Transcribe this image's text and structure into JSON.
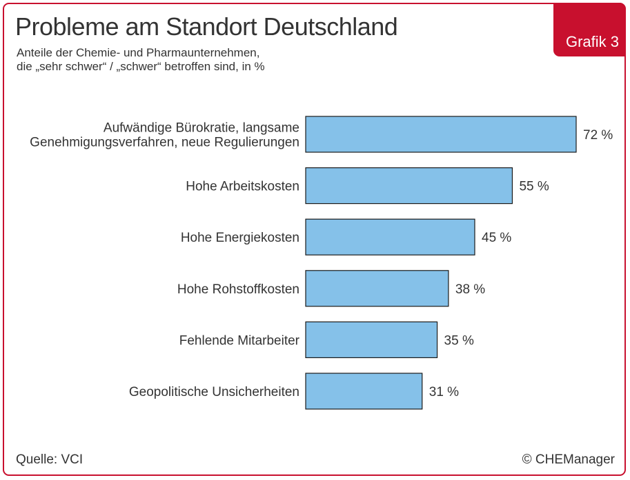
{
  "badge": "Grafik 3",
  "chart_data": {
    "type": "bar",
    "orientation": "horizontal",
    "title": "Probleme am Standort Deutschland",
    "subtitle_lines": [
      "Anteile der Chemie- und Pharmaunternehmen,",
      "die „sehr schwer“ / „schwer“ betroffen sind, in %"
    ],
    "categories": [
      [
        "Aufwändige Bürokratie, langsame",
        "Genehmigungsverfahren, neue Regulierungen"
      ],
      [
        "Hohe Arbeitskosten"
      ],
      [
        "Hohe Energiekosten"
      ],
      [
        "Hohe Rohstoffkosten"
      ],
      [
        "Fehlende Mitarbeiter"
      ],
      [
        "Geopolitische Unsicherheiten"
      ]
    ],
    "values": [
      72,
      55,
      45,
      38,
      35,
      31
    ],
    "value_labels": [
      "72 %",
      "55 %",
      "45 %",
      "38 %",
      "35 %",
      "31 %"
    ],
    "bar_color": "#85c1e9",
    "bar_border": "#1a1a1a",
    "xlim": [
      0,
      72
    ]
  },
  "footer": {
    "source": "Quelle: VCI",
    "copyright": "© CHEManager"
  },
  "colors": {
    "accent": "#c8102e"
  }
}
